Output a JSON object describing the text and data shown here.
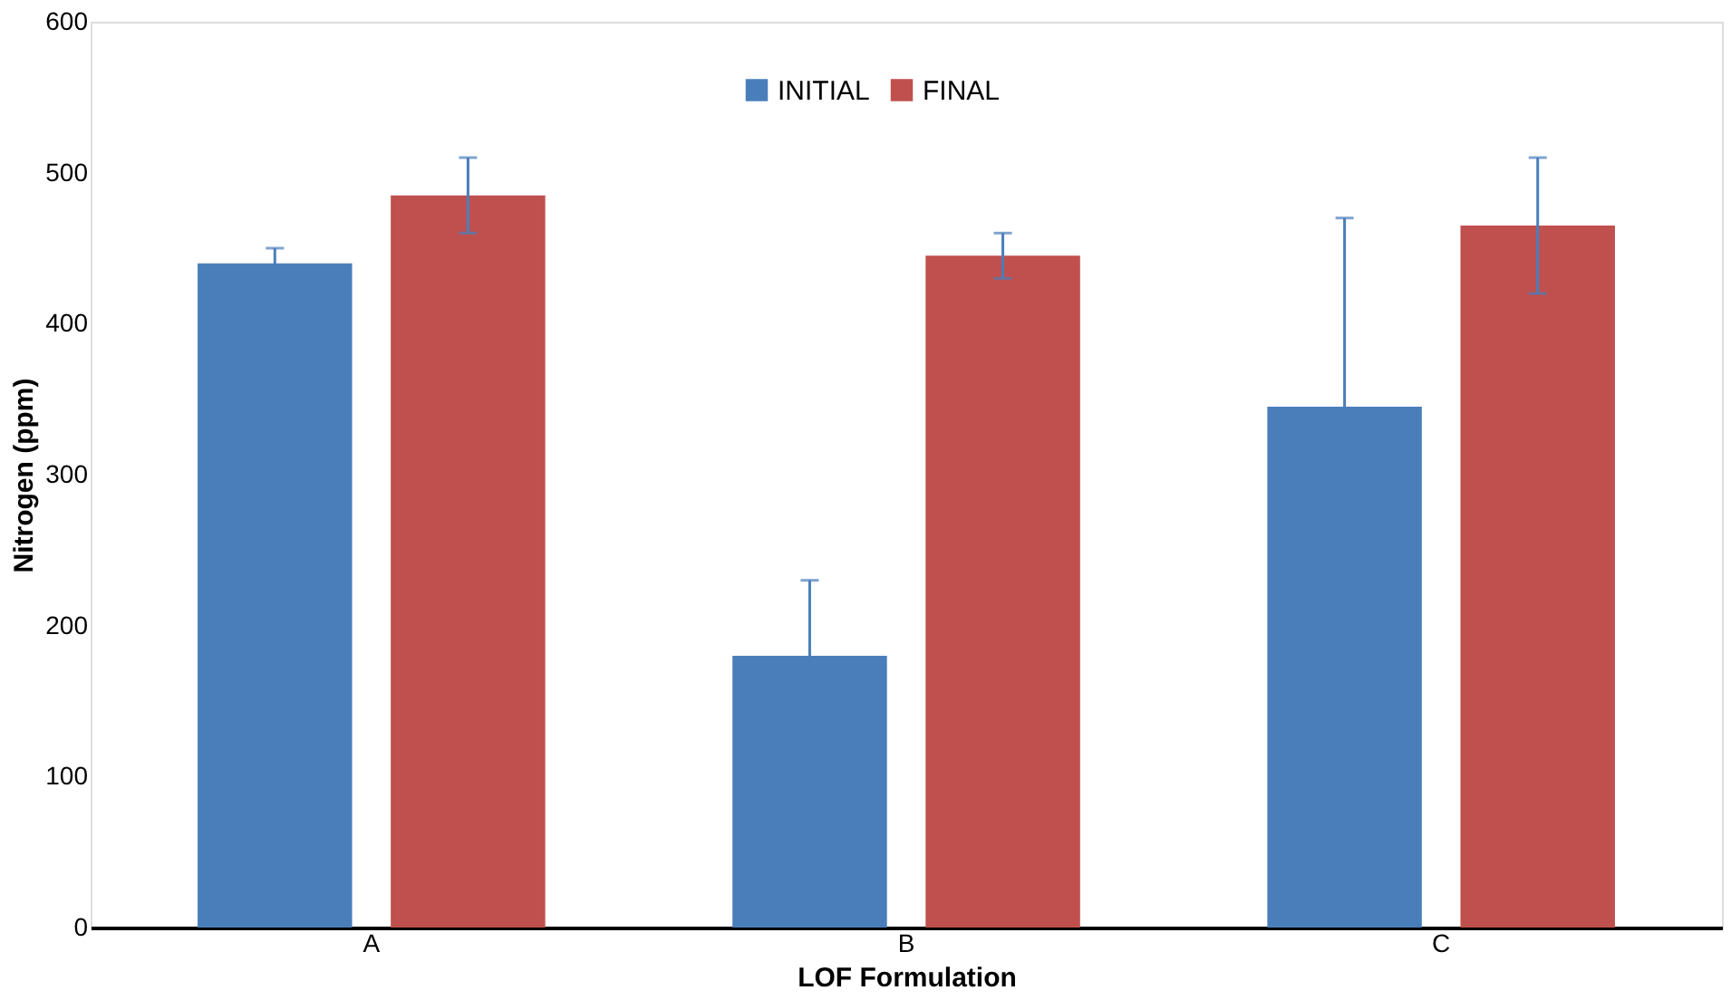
{
  "chart_data": {
    "type": "bar",
    "xlabel": "LOF Formulation",
    "ylabel": "Nitrogen (ppm)",
    "categories": [
      "A",
      "B",
      "C"
    ],
    "series": [
      {
        "name": "INITIAL",
        "color": "#4a7ebb",
        "values": [
          440,
          180,
          345
        ],
        "errors": [
          10,
          50,
          125
        ]
      },
      {
        "name": "FINAL",
        "color": "#c0504d",
        "values": [
          485,
          445,
          465
        ],
        "errors": [
          25,
          15,
          45
        ]
      }
    ],
    "ylim": [
      0,
      600
    ],
    "yticks": [
      0,
      100,
      200,
      300,
      400,
      500,
      600
    ],
    "grid": false,
    "legend": "top"
  }
}
